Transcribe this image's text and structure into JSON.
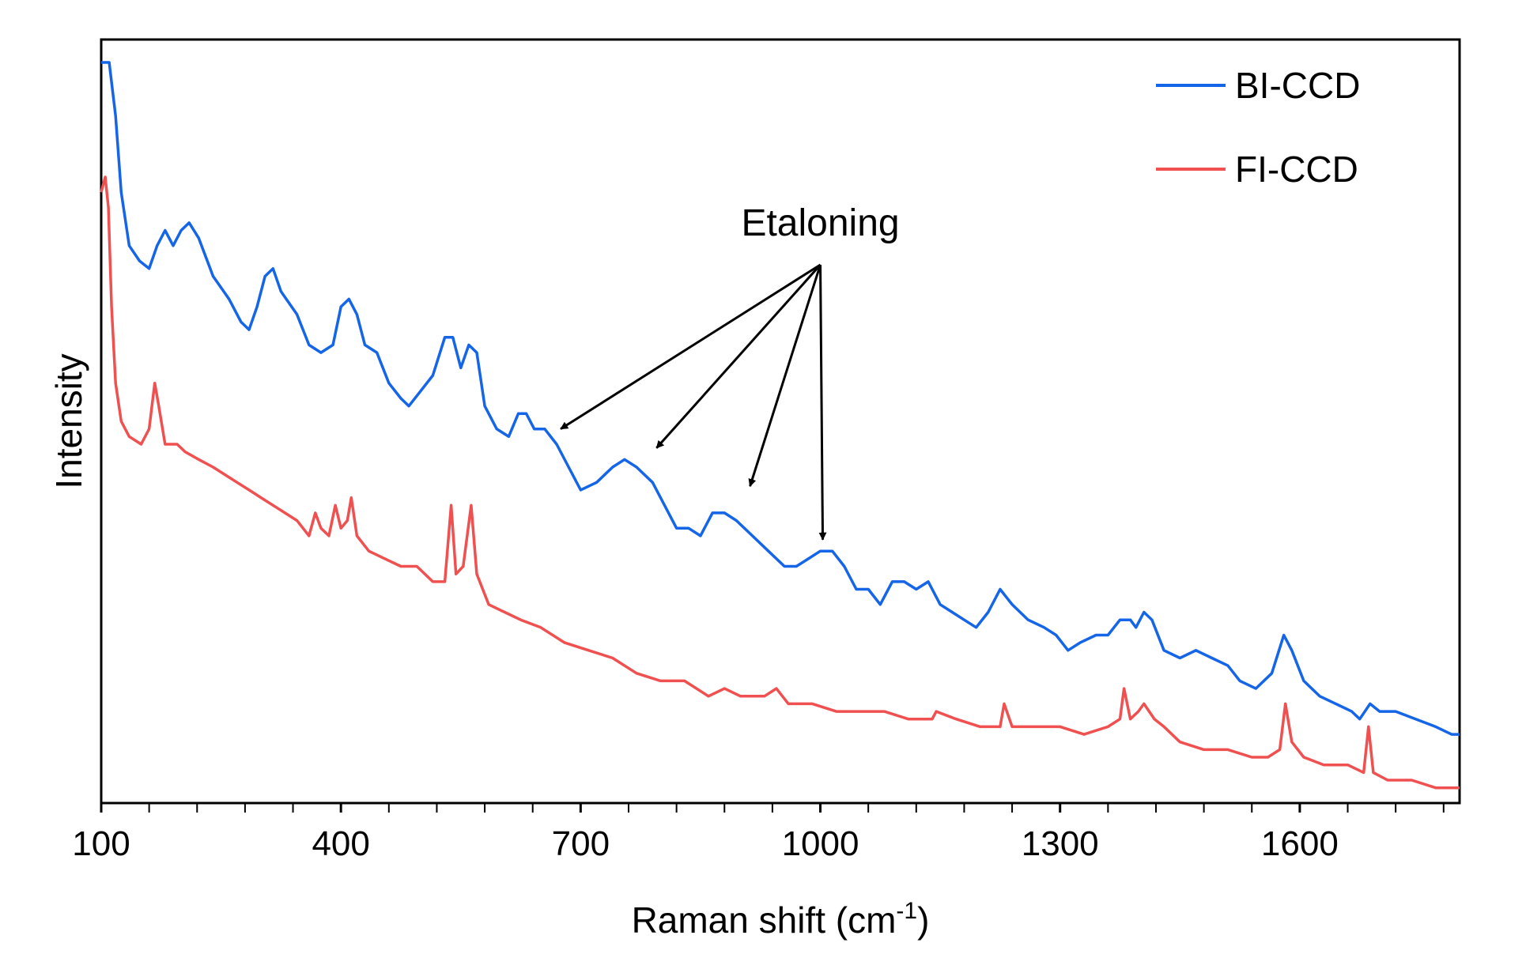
{
  "chart_data": {
    "type": "line",
    "title": "",
    "xlabel": "Raman shift (cm",
    "xlabel_sup": "-1",
    "xlabel_close": ")",
    "ylabel": "Intensity",
    "xlim": [
      100,
      1800
    ],
    "ylim": [
      0,
      1
    ],
    "x_ticks": [
      100,
      400,
      700,
      1000,
      1300,
      1600
    ],
    "x_ticks_minor_step": 60,
    "y_ticks": [],
    "grid": false,
    "legend": "top-right",
    "series": [
      {
        "name": "BI-CCD",
        "color": "#1565e8",
        "points": [
          [
            100,
            0.97
          ],
          [
            110,
            0.97
          ],
          [
            118,
            0.9
          ],
          [
            125,
            0.8
          ],
          [
            135,
            0.73
          ],
          [
            148,
            0.71
          ],
          [
            160,
            0.7
          ],
          [
            170,
            0.73
          ],
          [
            180,
            0.75
          ],
          [
            190,
            0.73
          ],
          [
            200,
            0.75
          ],
          [
            210,
            0.76
          ],
          [
            222,
            0.74
          ],
          [
            240,
            0.69
          ],
          [
            260,
            0.66
          ],
          [
            275,
            0.63
          ],
          [
            285,
            0.62
          ],
          [
            295,
            0.65
          ],
          [
            305,
            0.69
          ],
          [
            315,
            0.7
          ],
          [
            325,
            0.67
          ],
          [
            345,
            0.64
          ],
          [
            360,
            0.6
          ],
          [
            375,
            0.59
          ],
          [
            390,
            0.6
          ],
          [
            400,
            0.65
          ],
          [
            410,
            0.66
          ],
          [
            420,
            0.64
          ],
          [
            430,
            0.6
          ],
          [
            445,
            0.59
          ],
          [
            460,
            0.55
          ],
          [
            475,
            0.53
          ],
          [
            485,
            0.52
          ],
          [
            500,
            0.54
          ],
          [
            515,
            0.56
          ],
          [
            530,
            0.61
          ],
          [
            540,
            0.61
          ],
          [
            550,
            0.57
          ],
          [
            560,
            0.6
          ],
          [
            570,
            0.59
          ],
          [
            580,
            0.52
          ],
          [
            595,
            0.49
          ],
          [
            610,
            0.48
          ],
          [
            622,
            0.51
          ],
          [
            632,
            0.51
          ],
          [
            642,
            0.49
          ],
          [
            655,
            0.49
          ],
          [
            670,
            0.47
          ],
          [
            685,
            0.44
          ],
          [
            700,
            0.41
          ],
          [
            720,
            0.42
          ],
          [
            740,
            0.44
          ],
          [
            755,
            0.45
          ],
          [
            770,
            0.44
          ],
          [
            790,
            0.42
          ],
          [
            805,
            0.39
          ],
          [
            820,
            0.36
          ],
          [
            835,
            0.36
          ],
          [
            850,
            0.35
          ],
          [
            865,
            0.38
          ],
          [
            880,
            0.38
          ],
          [
            895,
            0.37
          ],
          [
            915,
            0.35
          ],
          [
            935,
            0.33
          ],
          [
            955,
            0.31
          ],
          [
            970,
            0.31
          ],
          [
            985,
            0.32
          ],
          [
            1000,
            0.33
          ],
          [
            1015,
            0.33
          ],
          [
            1030,
            0.31
          ],
          [
            1045,
            0.28
          ],
          [
            1060,
            0.28
          ],
          [
            1075,
            0.26
          ],
          [
            1090,
            0.29
          ],
          [
            1105,
            0.29
          ],
          [
            1120,
            0.28
          ],
          [
            1135,
            0.29
          ],
          [
            1150,
            0.26
          ],
          [
            1165,
            0.25
          ],
          [
            1180,
            0.24
          ],
          [
            1195,
            0.23
          ],
          [
            1210,
            0.25
          ],
          [
            1225,
            0.28
          ],
          [
            1240,
            0.26
          ],
          [
            1260,
            0.24
          ],
          [
            1280,
            0.23
          ],
          [
            1295,
            0.22
          ],
          [
            1310,
            0.2
          ],
          [
            1325,
            0.21
          ],
          [
            1345,
            0.22
          ],
          [
            1360,
            0.22
          ],
          [
            1375,
            0.24
          ],
          [
            1388,
            0.24
          ],
          [
            1395,
            0.23
          ],
          [
            1405,
            0.25
          ],
          [
            1415,
            0.24
          ],
          [
            1430,
            0.2
          ],
          [
            1450,
            0.19
          ],
          [
            1470,
            0.2
          ],
          [
            1490,
            0.19
          ],
          [
            1510,
            0.18
          ],
          [
            1525,
            0.16
          ],
          [
            1545,
            0.15
          ],
          [
            1565,
            0.17
          ],
          [
            1580,
            0.22
          ],
          [
            1590,
            0.2
          ],
          [
            1605,
            0.16
          ],
          [
            1625,
            0.14
          ],
          [
            1645,
            0.13
          ],
          [
            1665,
            0.12
          ],
          [
            1675,
            0.11
          ],
          [
            1688,
            0.13
          ],
          [
            1700,
            0.12
          ],
          [
            1720,
            0.12
          ],
          [
            1745,
            0.11
          ],
          [
            1770,
            0.1
          ],
          [
            1790,
            0.09
          ],
          [
            1800,
            0.09
          ]
        ]
      },
      {
        "name": "FI-CCD",
        "color": "#f05050",
        "points": [
          [
            100,
            0.8
          ],
          [
            105,
            0.82
          ],
          [
            109,
            0.78
          ],
          [
            113,
            0.65
          ],
          [
            118,
            0.55
          ],
          [
            125,
            0.5
          ],
          [
            135,
            0.48
          ],
          [
            150,
            0.47
          ],
          [
            160,
            0.49
          ],
          [
            167,
            0.55
          ],
          [
            172,
            0.52
          ],
          [
            180,
            0.47
          ],
          [
            195,
            0.47
          ],
          [
            205,
            0.46
          ],
          [
            222,
            0.45
          ],
          [
            240,
            0.44
          ],
          [
            255,
            0.43
          ],
          [
            270,
            0.42
          ],
          [
            285,
            0.41
          ],
          [
            300,
            0.4
          ],
          [
            315,
            0.39
          ],
          [
            330,
            0.38
          ],
          [
            345,
            0.37
          ],
          [
            360,
            0.35
          ],
          [
            368,
            0.38
          ],
          [
            375,
            0.36
          ],
          [
            385,
            0.35
          ],
          [
            393,
            0.39
          ],
          [
            400,
            0.36
          ],
          [
            408,
            0.37
          ],
          [
            413,
            0.4
          ],
          [
            420,
            0.35
          ],
          [
            435,
            0.33
          ],
          [
            455,
            0.32
          ],
          [
            475,
            0.31
          ],
          [
            495,
            0.31
          ],
          [
            515,
            0.29
          ],
          [
            530,
            0.29
          ],
          [
            538,
            0.39
          ],
          [
            544,
            0.3
          ],
          [
            553,
            0.31
          ],
          [
            563,
            0.39
          ],
          [
            570,
            0.3
          ],
          [
            585,
            0.26
          ],
          [
            605,
            0.25
          ],
          [
            625,
            0.24
          ],
          [
            650,
            0.23
          ],
          [
            680,
            0.21
          ],
          [
            710,
            0.2
          ],
          [
            740,
            0.19
          ],
          [
            770,
            0.17
          ],
          [
            800,
            0.16
          ],
          [
            830,
            0.16
          ],
          [
            860,
            0.14
          ],
          [
            880,
            0.15
          ],
          [
            900,
            0.14
          ],
          [
            930,
            0.14
          ],
          [
            945,
            0.15
          ],
          [
            960,
            0.13
          ],
          [
            990,
            0.13
          ],
          [
            1020,
            0.12
          ],
          [
            1050,
            0.12
          ],
          [
            1080,
            0.12
          ],
          [
            1110,
            0.11
          ],
          [
            1140,
            0.11
          ],
          [
            1145,
            0.12
          ],
          [
            1170,
            0.11
          ],
          [
            1200,
            0.1
          ],
          [
            1225,
            0.1
          ],
          [
            1230,
            0.13
          ],
          [
            1240,
            0.1
          ],
          [
            1270,
            0.1
          ],
          [
            1300,
            0.1
          ],
          [
            1330,
            0.09
          ],
          [
            1360,
            0.1
          ],
          [
            1375,
            0.11
          ],
          [
            1380,
            0.15
          ],
          [
            1388,
            0.11
          ],
          [
            1398,
            0.12
          ],
          [
            1405,
            0.13
          ],
          [
            1418,
            0.11
          ],
          [
            1430,
            0.1
          ],
          [
            1450,
            0.08
          ],
          [
            1480,
            0.07
          ],
          [
            1510,
            0.07
          ],
          [
            1540,
            0.06
          ],
          [
            1560,
            0.06
          ],
          [
            1575,
            0.07
          ],
          [
            1582,
            0.13
          ],
          [
            1590,
            0.08
          ],
          [
            1605,
            0.06
          ],
          [
            1630,
            0.05
          ],
          [
            1660,
            0.05
          ],
          [
            1680,
            0.04
          ],
          [
            1686,
            0.1
          ],
          [
            1692,
            0.04
          ],
          [
            1710,
            0.03
          ],
          [
            1740,
            0.03
          ],
          [
            1770,
            0.02
          ],
          [
            1800,
            0.02
          ]
        ]
      }
    ],
    "annotations": [
      {
        "text": "Etaloning",
        "text_at": [
          1000,
          0.76
        ],
        "arrow_from": [
          1000,
          0.705
        ],
        "arrow_targets": [
          [
            675,
            0.49
          ],
          [
            795,
            0.465
          ],
          [
            912,
            0.415
          ],
          [
            1003,
            0.345
          ]
        ]
      }
    ]
  }
}
